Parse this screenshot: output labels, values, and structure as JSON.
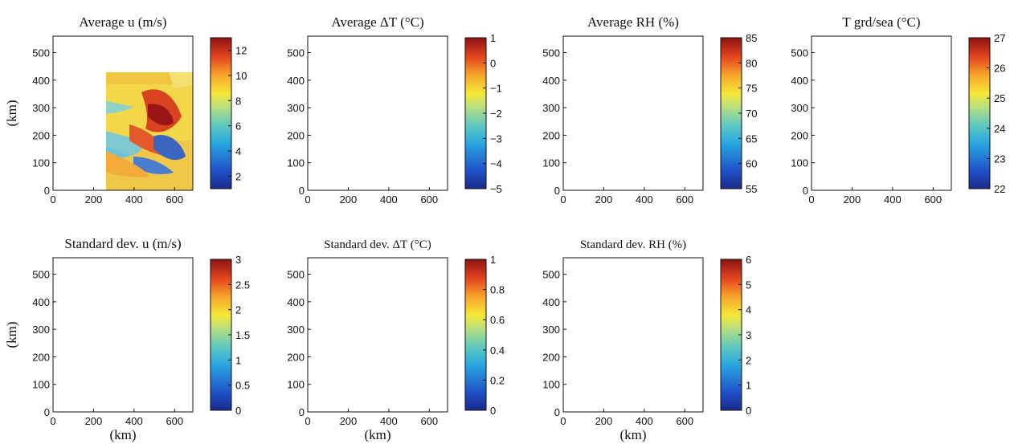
{
  "chart_data": [
    {
      "type": "heatmap",
      "title": "Average u (m/s)",
      "ylabel": "(km)",
      "xlabel": "",
      "xlim": [
        0,
        690
      ],
      "ylim": [
        0,
        560
      ],
      "xticks": [
        "0",
        "200",
        "400",
        "600"
      ],
      "xtick_values": [
        0,
        200,
        400,
        600
      ],
      "yticks": [
        "0",
        "100",
        "200",
        "300",
        "400",
        "500"
      ],
      "ytick_values": [
        0,
        100,
        200,
        300,
        400,
        500
      ],
      "colorbar": {
        "min": 1,
        "max": 13,
        "ticks": [
          "2",
          "4",
          "6",
          "8",
          "10",
          "12"
        ],
        "tick_values": [
          2,
          4,
          6,
          8,
          10,
          12
        ]
      }
    },
    {
      "type": "heatmap",
      "title": "Average ΔT (°C)",
      "ylabel": "",
      "xlabel": "",
      "xlim": [
        0,
        690
      ],
      "ylim": [
        0,
        560
      ],
      "xticks": [
        "0",
        "200",
        "400",
        "600"
      ],
      "xtick_values": [
        0,
        200,
        400,
        600
      ],
      "yticks": [
        "0",
        "100",
        "200",
        "300",
        "400",
        "500"
      ],
      "ytick_values": [
        0,
        100,
        200,
        300,
        400,
        500
      ],
      "colorbar": {
        "min": -5,
        "max": 1,
        "ticks": [
          "−5",
          "−4",
          "−3",
          "−2",
          "−1",
          "0",
          "1"
        ],
        "tick_values": [
          -5,
          -4,
          -3,
          -2,
          -1,
          0,
          1
        ]
      }
    },
    {
      "type": "heatmap",
      "title": "Average RH (%)",
      "ylabel": "",
      "xlabel": "",
      "xlim": [
        0,
        690
      ],
      "ylim": [
        0,
        560
      ],
      "xticks": [
        "0",
        "200",
        "400",
        "600"
      ],
      "xtick_values": [
        0,
        200,
        400,
        600
      ],
      "yticks": [
        "0",
        "100",
        "200",
        "300",
        "400",
        "500"
      ],
      "ytick_values": [
        0,
        100,
        200,
        300,
        400,
        500
      ],
      "colorbar": {
        "min": 55,
        "max": 85,
        "ticks": [
          "55",
          "60",
          "65",
          "70",
          "75",
          "80",
          "85"
        ],
        "tick_values": [
          55,
          60,
          65,
          70,
          75,
          80,
          85
        ]
      }
    },
    {
      "type": "heatmap",
      "title": "T grd/sea (°C)",
      "ylabel": "",
      "xlabel": "",
      "xlim": [
        0,
        690
      ],
      "ylim": [
        0,
        560
      ],
      "xticks": [
        "0",
        "200",
        "400",
        "600"
      ],
      "xtick_values": [
        0,
        200,
        400,
        600
      ],
      "yticks": [
        "0",
        "100",
        "200",
        "300",
        "400",
        "500"
      ],
      "ytick_values": [
        0,
        100,
        200,
        300,
        400,
        500
      ],
      "colorbar": {
        "min": 22,
        "max": 27,
        "ticks": [
          "22",
          "23",
          "24",
          "25",
          "26",
          "27"
        ],
        "tick_values": [
          22,
          23,
          24,
          25,
          26,
          27
        ]
      }
    },
    {
      "type": "heatmap",
      "title": "Standard dev. u (m/s)",
      "ylabel": "(km)",
      "xlabel": "(km)",
      "xlim": [
        0,
        690
      ],
      "ylim": [
        0,
        560
      ],
      "xticks": [
        "0",
        "200",
        "400",
        "600"
      ],
      "xtick_values": [
        0,
        200,
        400,
        600
      ],
      "yticks": [
        "0",
        "100",
        "200",
        "300",
        "400",
        "500"
      ],
      "ytick_values": [
        0,
        100,
        200,
        300,
        400,
        500
      ],
      "colorbar": {
        "min": 0,
        "max": 3,
        "ticks": [
          "0",
          "0.5",
          "1",
          "1.5",
          "2",
          "2.5",
          "3"
        ],
        "tick_values": [
          0,
          0.5,
          1,
          1.5,
          2,
          2.5,
          3
        ]
      }
    },
    {
      "type": "heatmap",
      "title": "Standard dev. ΔT (°C)",
      "ylabel": "",
      "xlabel": "(km)",
      "xlim": [
        0,
        690
      ],
      "ylim": [
        0,
        560
      ],
      "xticks": [
        "0",
        "200",
        "400",
        "600"
      ],
      "xtick_values": [
        0,
        200,
        400,
        600
      ],
      "yticks": [
        "0",
        "100",
        "200",
        "300",
        "400",
        "500"
      ],
      "ytick_values": [
        0,
        100,
        200,
        300,
        400,
        500
      ],
      "colorbar": {
        "min": 0,
        "max": 1,
        "ticks": [
          "0",
          "0.2",
          "0.4",
          "0.6",
          "0.8",
          "1"
        ],
        "tick_values": [
          0,
          0.2,
          0.4,
          0.6,
          0.8,
          1
        ]
      }
    },
    {
      "type": "heatmap",
      "title": "Standard dev. RH (%)",
      "ylabel": "",
      "xlabel": "(km)",
      "xlim": [
        0,
        690
      ],
      "ylim": [
        0,
        560
      ],
      "xticks": [
        "0",
        "200",
        "400",
        "600"
      ],
      "xtick_values": [
        0,
        200,
        400,
        600
      ],
      "yticks": [
        "0",
        "100",
        "200",
        "300",
        "400",
        "500"
      ],
      "ytick_values": [
        0,
        100,
        200,
        300,
        400,
        500
      ],
      "colorbar": {
        "min": 0,
        "max": 6,
        "ticks": [
          "0",
          "1",
          "2",
          "3",
          "4",
          "5",
          "6"
        ],
        "tick_values": [
          0,
          1,
          2,
          3,
          4,
          5,
          6
        ]
      }
    }
  ],
  "colormap": "jet",
  "colors": {
    "axis": "#111111",
    "background": "#ffffff"
  }
}
